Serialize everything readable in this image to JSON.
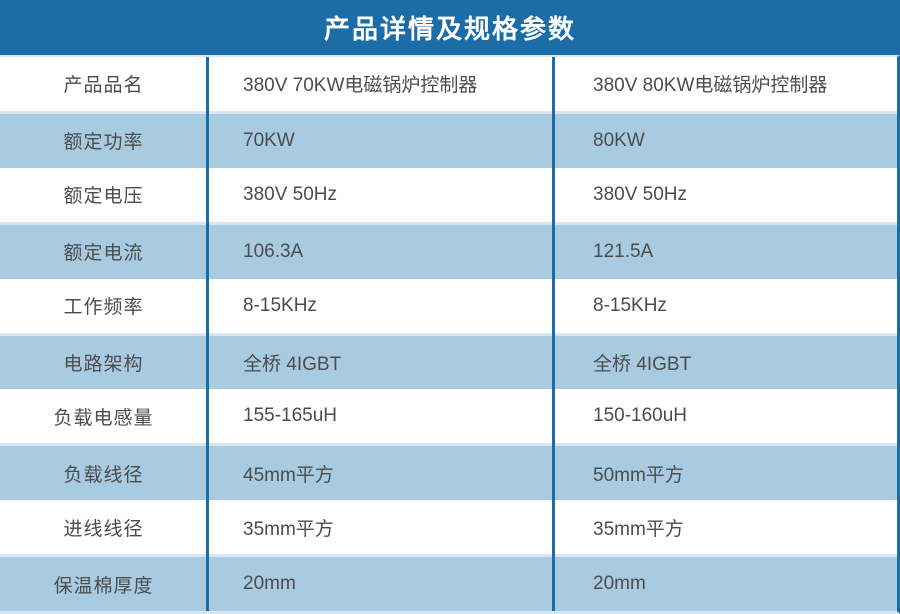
{
  "page": {
    "title": "产品详情及规格参数"
  },
  "colors": {
    "header_bg": "#1B6CA7",
    "row_alt_bg": "#A9CBE2",
    "row_bg": "#FFFFFF",
    "divider": "#1B6CA7",
    "separator_light": "#D6E6F3",
    "text": "#4C4C4C",
    "title_text": "#FFFFFF"
  },
  "table": {
    "rows": [
      {
        "label": "产品品名",
        "value1": "380V 70KW电磁锅炉控制器",
        "value2": "380V 80KW电磁锅炉控制器"
      },
      {
        "label": "额定功率",
        "value1": "70KW",
        "value2": "80KW"
      },
      {
        "label": "额定电压",
        "value1": "380V 50Hz",
        "value2": "380V 50Hz"
      },
      {
        "label": "额定电流",
        "value1": "106.3A",
        "value2": "121.5A"
      },
      {
        "label": "工作频率",
        "value1": "8-15KHz",
        "value2": "8-15KHz"
      },
      {
        "label": "电路架构",
        "value1": "全桥 4IGBT",
        "value2": "全桥 4IGBT"
      },
      {
        "label": "负载电感量",
        "value1": "155-165uH",
        "value2": "150-160uH"
      },
      {
        "label": "负载线径",
        "value1": "45mm平方",
        "value2": "50mm平方"
      },
      {
        "label": "进线线径",
        "value1": "35mm平方",
        "value2": "35mm平方"
      },
      {
        "label": "保温棉厚度",
        "value1": "20mm",
        "value2": "20mm"
      }
    ]
  }
}
